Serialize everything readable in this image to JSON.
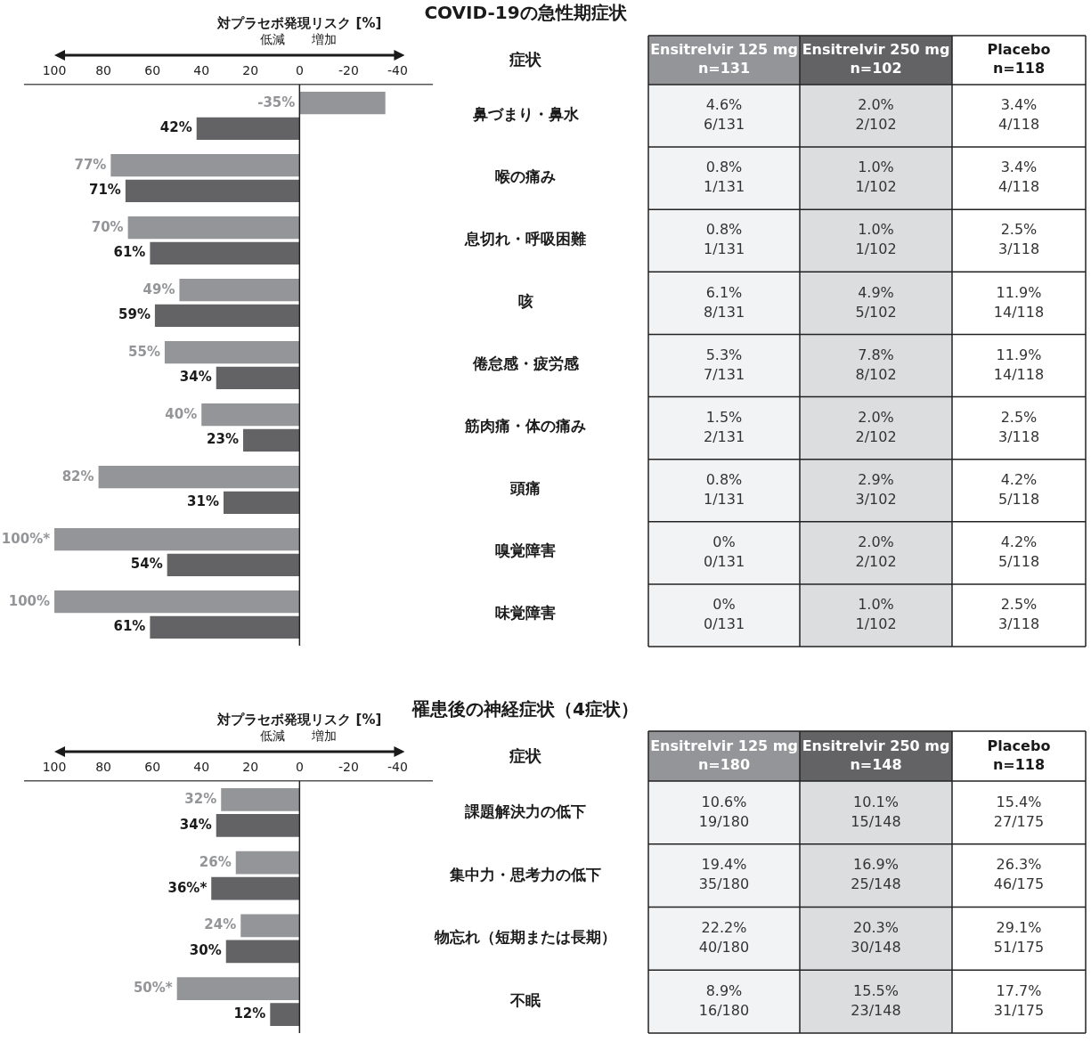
{
  "chart_data": [
    {
      "type": "bar",
      "orientation": "horizontal",
      "title": "COVID-19の急性期症状",
      "xlabel": "対プラセボ発現リスク [%]",
      "ylabel": "症状",
      "annotations": [
        "低減",
        "増加"
      ],
      "categories": [
        "鼻づまり・鼻水",
        "喉の痛み",
        "息切れ・呼吸困難",
        "咳",
        "倦怠感・疲労感",
        "筋肉痛・体の痛み",
        "頭痛",
        "嗅覚障害",
        "味覚障害"
      ],
      "xlim": [
        112,
        -54
      ],
      "xticks": [
        100,
        80,
        60,
        40,
        20,
        0,
        -20,
        -40
      ],
      "grid": false,
      "legend": false,
      "ref_lines": [
        {
          "axis": "x",
          "value": 0,
          "color": "#222222"
        }
      ],
      "series": [
        {
          "color": "#949598",
          "values": [
            -35,
            77,
            70,
            49,
            55,
            40,
            82,
            100,
            100
          ],
          "value_labels": [
            "-35%",
            "77%",
            "70%",
            "49%",
            "55%",
            "40%",
            "82%",
            "100%*",
            "100%"
          ]
        },
        {
          "color": "#636366",
          "values": [
            42,
            71,
            61,
            59,
            34,
            23,
            31,
            54,
            61
          ],
          "value_labels": [
            "42%",
            "71%",
            "61%",
            "59%",
            "34%",
            "23%",
            "31%",
            "54%",
            "61%"
          ]
        }
      ]
    },
    {
      "type": "other",
      "categories": [
        "Ensitrelvir 125 mg\nn=131",
        "Ensitrelvir 250 mg\nn=102",
        "Placebo\nn=118"
      ],
      "y_categories": [
        null,
        null,
        null,
        null,
        null,
        null,
        null,
        null,
        null
      ],
      "colors": [
        "#f2f3f4",
        "#dcdddf",
        "#ffffff"
      ],
      "cell_labels": [
        [
          "4.6%\n6/131",
          "2.0%\n2/102",
          "3.4%\n4/118"
        ],
        [
          "0.8%\n1/131",
          "1.0%\n1/102",
          "3.4%\n4/118"
        ],
        [
          "0.8%\n1/131",
          "1.0%\n1/102",
          "2.5%\n3/118"
        ],
        [
          "6.1%\n8/131",
          "4.9%\n5/102",
          "11.9%\n14/118"
        ],
        [
          "5.3%\n7/131",
          "7.8%\n8/102",
          "11.9%\n14/118"
        ],
        [
          "1.5%\n2/131",
          "2.0%\n2/102",
          "2.5%\n3/118"
        ],
        [
          "0.8%\n1/131",
          "2.9%\n3/102",
          "4.2%\n5/118"
        ],
        [
          "0%\n0/131",
          "2.0%\n2/102",
          "4.2%\n5/118"
        ],
        [
          "0%\n0/131",
          "1.0%\n1/102",
          "2.5%\n3/118"
        ]
      ]
    },
    {
      "type": "bar",
      "orientation": "horizontal",
      "title": "罹患後の神経症状（4症状）",
      "xlabel": "対プラセボ発現リスク [%]",
      "ylabel": "症状",
      "annotations": [
        "低減",
        "増加"
      ],
      "categories": [
        "課題解決力の低下",
        "集中力・思考力の低下",
        "物忘れ（短期または長期）",
        "不眠"
      ],
      "xlim": [
        112,
        -54
      ],
      "xticks": [
        100,
        80,
        60,
        40,
        20,
        0,
        -20,
        -40
      ],
      "grid": false,
      "legend": false,
      "ref_lines": [
        {
          "axis": "x",
          "value": 0,
          "color": "#222222"
        }
      ],
      "series": [
        {
          "color": "#949598",
          "values": [
            32,
            26,
            24,
            50
          ],
          "value_labels": [
            "32%",
            "26%",
            "24%",
            "50%*"
          ]
        },
        {
          "color": "#636366",
          "values": [
            34,
            36,
            30,
            12
          ],
          "value_labels": [
            "34%",
            "36%*",
            "30%",
            "12%"
          ]
        }
      ]
    },
    {
      "type": "other",
      "categories": [
        "Ensitrelvir 125 mg\nn=180",
        "Ensitrelvir 250 mg\nn=148",
        "Placebo\nn=118"
      ],
      "y_categories": [
        null,
        null,
        null,
        null
      ],
      "colors": [
        "#f2f3f4",
        "#dcdddf",
        "#ffffff"
      ],
      "cell_labels": [
        [
          "10.6%\n19/180",
          "10.1%\n15/148",
          "15.4%\n27/175"
        ],
        [
          "19.4%\n35/180",
          "16.9%\n25/148",
          "26.3%\n46/175"
        ],
        [
          "22.2%\n40/180",
          "20.3%\n30/148",
          "29.1%\n51/175"
        ],
        [
          "8.9%\n16/180",
          "15.5%\n23/148",
          "17.7%\n31/175"
        ]
      ]
    }
  ]
}
